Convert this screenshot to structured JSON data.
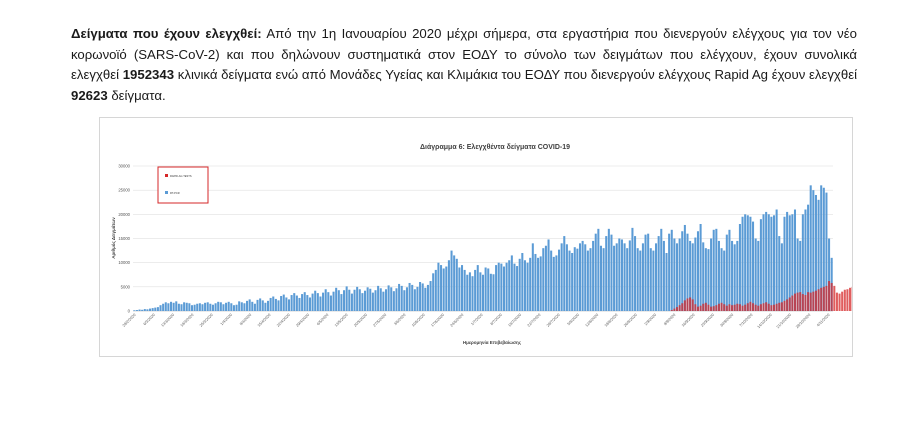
{
  "paragraph": {
    "lead": "Δείγματα που έχουν ελεγχθεί:",
    "text1": " Από την 1η Ιανουαρίου 2020 μέχρι σήμερα, στα εργαστήρια που διενεργούν ελέγχους για τον νέο κορωνοϊό (SARS-CoV-2) και που δηλώνουν συστηματικά στον ΕΟΔΥ το σύνολο των δειγμάτων που ελέγχουν, έχουν συνολικά ελεγχθεί ",
    "num1": "1952343",
    "text2": " κλινικά δείγματα ενώ από Μονάδες Υγείας και Κλιμάκια του ΕΟΔΥ που διενεργούν ελέγχους Rapid Ag έχουν ελεγχθεί ",
    "num2": "92623",
    "text3": " δείγματα."
  },
  "chart_data": {
    "type": "bar",
    "title": "Διάγραμμα 6: Ελεγχθέντα δείγματα COVID-19",
    "xlabel": "Ημερομηνία Επιβεβαίωσης",
    "ylabel": "Αριθμός Δειγμάτων",
    "ylim": [
      0,
      30000
    ],
    "yticks": [
      0,
      5000,
      10000,
      15000,
      20000,
      25000,
      30000
    ],
    "xtick_labels": [
      "29/2/2020",
      "6/3/2020",
      "13/3/2020",
      "18/3/2020",
      "25/3/2020",
      "1/4/2020",
      "8/4/2020",
      "15/4/2020",
      "22/4/2020",
      "29/4/2020",
      "6/5/2020",
      "13/5/2020",
      "20/5/2020",
      "27/5/2020",
      "3/6/2020",
      "10/6/2020",
      "17/6/2020",
      "24/6/2020",
      "1/7/2020",
      "8/7/2020",
      "15/7/2020",
      "22/7/2020",
      "29/7/2020",
      "5/8/2020",
      "12/8/2020",
      "19/8/2020",
      "26/8/2020",
      "2/9/2020",
      "9/9/2020",
      "16/9/2020",
      "23/9/2020",
      "30/9/2020",
      "7/10/2020",
      "14/10/2020",
      "21/10/2020",
      "28/10/2020",
      "4/11/2020"
    ],
    "legend": {
      "placement": "top-left",
      "entries": [
        {
          "label": "RAPID-AG TESTS",
          "color": "#d62728"
        },
        {
          "label": "RT-PCR",
          "color": "#5b9bd5"
        }
      ]
    },
    "series": [
      {
        "name": "RT-PCR",
        "color": "#5b9bd5",
        "values": [
          150,
          200,
          300,
          250,
          400,
          350,
          500,
          600,
          700,
          800,
          1200,
          1500,
          1800,
          1600,
          1900,
          1700,
          2000,
          1500,
          1400,
          1800,
          1700,
          1600,
          1200,
          1300,
          1500,
          1600,
          1400,
          1700,
          1800,
          1500,
          1300,
          1600,
          1900,
          1800,
          1400,
          1700,
          1900,
          1600,
          1200,
          1300,
          2000,
          1800,
          1600,
          2100,
          2400,
          1900,
          1500,
          2300,
          2600,
          2200,
          1700,
          2100,
          2700,
          3000,
          2500,
          2200,
          3100,
          3400,
          2800,
          2400,
          3300,
          3700,
          3200,
          2700,
          3500,
          3900,
          3300,
          2800,
          3600,
          4200,
          3700,
          3000,
          3800,
          4500,
          3900,
          3200,
          4000,
          4800,
          4300,
          3500,
          4300,
          5100,
          4400,
          3600,
          4400,
          5000,
          4500,
          3700,
          4200,
          4900,
          4600,
          3800,
          4300,
          5200,
          4700,
          4000,
          4500,
          5300,
          4900,
          4100,
          4700,
          5600,
          5200,
          4300,
          4900,
          5800,
          5400,
          4500,
          5000,
          6000,
          5700,
          4800,
          5400,
          6200,
          7800,
          8500,
          10000,
          9500,
          8800,
          9200,
          10500,
          12500,
          11500,
          10800,
          9000,
          9500,
          8500,
          7500,
          8000,
          7200,
          8500,
          9500,
          8000,
          7500,
          9000,
          8800,
          7700,
          7600,
          9500,
          10000,
          9800,
          9200,
          10000,
          10500,
          11500,
          9800,
          9300,
          10800,
          12000,
          10500,
          10000,
          11000,
          14000,
          11800,
          11000,
          11300,
          13000,
          13500,
          14800,
          12500,
          11200,
          11500,
          12700,
          14000,
          15500,
          13800,
          12500,
          12000,
          13200,
          12900,
          14000,
          14500,
          13800,
          12500,
          13000,
          14500,
          16000,
          17000,
          13500,
          13000,
          15500,
          17000,
          15800,
          13500,
          14000,
          15000,
          14800,
          14000,
          13000,
          14600,
          17200,
          15500,
          13000,
          12500,
          14000,
          15800,
          16000,
          13000,
          12500,
          14000,
          15500,
          17000,
          14500,
          12000,
          16000,
          16800,
          15000,
          14000,
          15000,
          16500,
          17800,
          16000,
          14500,
          14000,
          15200,
          16500,
          18000,
          14200,
          13000,
          12800,
          15000,
          16800,
          17000,
          14500,
          13000,
          12500,
          15800,
          16800,
          14500,
          13800,
          14500,
          18000,
          19500,
          20000,
          19800,
          19500,
          18500,
          15000,
          14500,
          19000,
          20000,
          20500,
          20000,
          19500,
          19800,
          21000,
          15500,
          14000,
          19500,
          20500,
          19800,
          20000,
          21000,
          15000,
          14500,
          20000,
          21000,
          22000,
          26000,
          25000,
          24000,
          23000,
          26000,
          25500,
          24500,
          15000,
          11000
        ]
      },
      {
        "name": "RAPID-AG TESTS",
        "color": "#d62728",
        "values": [
          0,
          0,
          0,
          0,
          0,
          0,
          0,
          0,
          0,
          0,
          0,
          0,
          0,
          0,
          0,
          0,
          0,
          0,
          0,
          0,
          0,
          0,
          0,
          0,
          0,
          0,
          0,
          0,
          0,
          0,
          0,
          0,
          0,
          0,
          0,
          0,
          0,
          0,
          0,
          0,
          0,
          0,
          0,
          0,
          0,
          0,
          0,
          0,
          0,
          0,
          0,
          0,
          0,
          0,
          0,
          0,
          0,
          0,
          0,
          0,
          0,
          0,
          0,
          0,
          0,
          0,
          0,
          0,
          0,
          0,
          0,
          0,
          0,
          0,
          0,
          0,
          0,
          0,
          0,
          0,
          0,
          0,
          0,
          0,
          0,
          0,
          0,
          0,
          0,
          0,
          0,
          0,
          0,
          0,
          0,
          0,
          0,
          0,
          0,
          0,
          0,
          0,
          0,
          0,
          0,
          0,
          0,
          0,
          0,
          0,
          0,
          0,
          0,
          0,
          0,
          0,
          0,
          0,
          0,
          0,
          0,
          0,
          0,
          0,
          0,
          0,
          0,
          0,
          0,
          0,
          0,
          0,
          0,
          0,
          0,
          0,
          0,
          0,
          0,
          0,
          0,
          0,
          0,
          0,
          0,
          0,
          0,
          0,
          0,
          0,
          0,
          0,
          0,
          0,
          0,
          0,
          0,
          0,
          0,
          0,
          0,
          0,
          0,
          0,
          0,
          0,
          0,
          0,
          0,
          0,
          0,
          0,
          0,
          0,
          0,
          0,
          0,
          0,
          0,
          0,
          0,
          0,
          0,
          0,
          0,
          0,
          0,
          0,
          0,
          0,
          0,
          0,
          0,
          0,
          0,
          0,
          0,
          0,
          0,
          0,
          0,
          0,
          0,
          0,
          0,
          200,
          500,
          800,
          1200,
          1600,
          2200,
          2600,
          2800,
          2400,
          1400,
          900,
          1100,
          1500,
          1700,
          1300,
          900,
          1000,
          1200,
          1500,
          1700,
          1400,
          1100,
          1400,
          1200,
          1300,
          1500,
          1400,
          1100,
          1300,
          1600,
          1900,
          1600,
          1300,
          1100,
          1400,
          1600,
          1800,
          1500,
          1200,
          1300,
          1500,
          1700,
          1800,
          2100,
          2400,
          2800,
          3200,
          3600,
          3800,
          3900,
          3500,
          3300,
          3900,
          3800,
          4000,
          4200,
          4500,
          4800,
          5000,
          5200,
          6200,
          5800,
          5200,
          3800,
          3600,
          4000,
          4400,
          4500,
          4800,
          5000,
          4800,
          3000,
          2600
        ]
      }
    ]
  }
}
